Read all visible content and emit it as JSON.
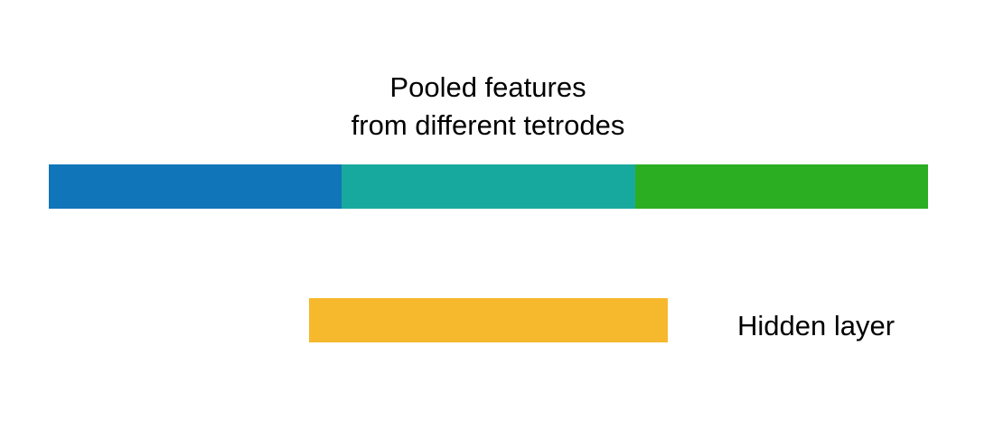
{
  "pooled": {
    "title_line1": "Pooled features",
    "title_line2": "from different tetrodes",
    "segments": [
      {
        "color": "#1175b9"
      },
      {
        "color": "#18a99e"
      },
      {
        "color": "#2cae22"
      }
    ]
  },
  "hidden": {
    "label": "Hidden layer",
    "color": "#f6b92d"
  }
}
